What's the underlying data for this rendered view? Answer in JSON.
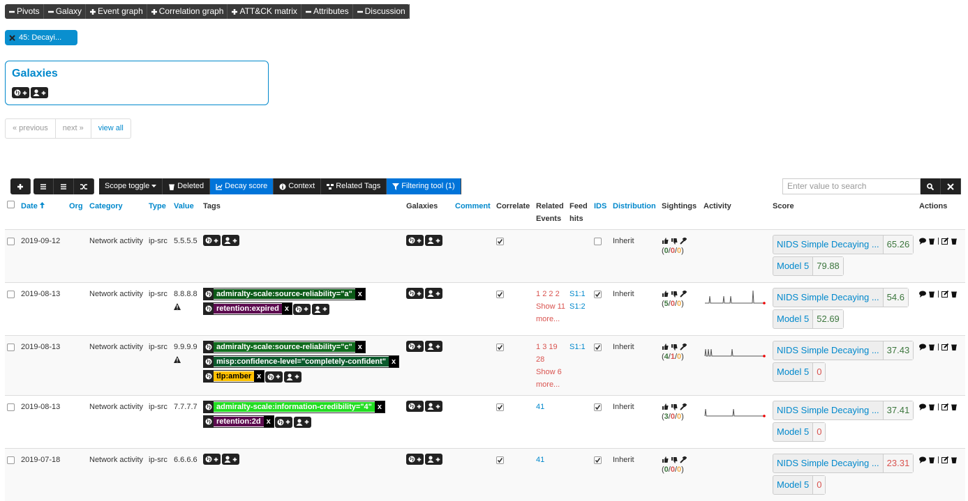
{
  "tabs": [
    {
      "text": "Pivots",
      "open": true
    },
    {
      "text": "Galaxy",
      "open": true
    },
    {
      "text": "Event graph",
      "open": false
    },
    {
      "text": "Correlation graph",
      "open": false
    },
    {
      "text": "ATT&CK matrix",
      "open": false
    },
    {
      "text": "Attributes",
      "open": true
    },
    {
      "text": "Discussion",
      "open": true
    }
  ],
  "pivot": "45: Decayi...",
  "galaxies": {
    "title": "Galaxies"
  },
  "pagination": [
    "« previous",
    "next »",
    "view all"
  ],
  "toolbar": [
    {
      "text": "Scope toggle",
      "active": false
    },
    {
      "text": "Deleted",
      "active": false
    },
    {
      "text": "Decay score",
      "active": true
    },
    {
      "text": "Context",
      "active": false
    },
    {
      "text": "Related Tags",
      "active": false
    },
    {
      "text": "Filtering tool (1)",
      "active": true
    }
  ],
  "search_placeholder": "Enter value to search",
  "tag_remove": "x",
  "table": {
    "headers": [
      {
        "text": "Date",
        "link": true
      },
      {
        "text": "Org",
        "link": true
      },
      {
        "text": "Category",
        "link": true
      },
      {
        "text": "Type",
        "link": true
      },
      {
        "text": "Value",
        "link": true
      },
      {
        "text": "Tags",
        "link": false
      },
      {
        "text": "Galaxies",
        "link": false
      },
      {
        "text": "Comment",
        "link": true
      },
      {
        "text": "Correlate",
        "link": false
      },
      {
        "text": "Related Events",
        "link": false
      },
      {
        "text": "Feed hits",
        "link": false
      },
      {
        "text": "IDS",
        "link": true
      },
      {
        "text": "Distribution",
        "link": true
      },
      {
        "text": "Sightings",
        "link": false
      },
      {
        "text": "Activity",
        "link": false
      },
      {
        "text": "Score",
        "link": false
      },
      {
        "text": "Actions",
        "link": false
      }
    ],
    "rows": [
      {
        "date": "2019-09-12",
        "category": "Network activity",
        "type": "ip-src",
        "value": "5.5.5.5",
        "warning": false,
        "tags": [],
        "correlate": true,
        "related": [],
        "related_more": null,
        "feed_hits": [],
        "ids": false,
        "distribution": "Inherit",
        "sightings": [
          0,
          0,
          0
        ],
        "activity": false,
        "scores": [
          {
            "model": "NIDS Simple Decaying ...",
            "score": 65.26,
            "color": "#3c763d"
          },
          {
            "model": "Model 5",
            "score": 79.88,
            "color": "#3c763d"
          }
        ]
      },
      {
        "date": "2019-08-13",
        "category": "Network activity",
        "type": "ip-src",
        "value": "8.8.8.8",
        "warning": true,
        "tags": [
          {
            "label": "admiralty-scale:source-reliability=\"a\"",
            "color": "#0b5a17",
            "text": "#ffffff"
          },
          {
            "label": "retention:expired",
            "color": "#5c0b4f",
            "text": "#ffffff"
          }
        ],
        "correlate": true,
        "related": [
          "1",
          "2",
          "2",
          "2"
        ],
        "related_more": "Show 11 more...",
        "feed_hits": [
          "S1:1",
          "S1:2"
        ],
        "ids": true,
        "distribution": "Inherit",
        "sightings": [
          5,
          0,
          0
        ],
        "activity": true,
        "scores": [
          {
            "model": "NIDS Simple Decaying ...",
            "score": 54.6,
            "color": "#3c763d"
          },
          {
            "model": "Model 5",
            "score": 52.69,
            "color": "#3c763d"
          }
        ]
      },
      {
        "date": "2019-08-13",
        "category": "Network activity",
        "type": "ip-src",
        "value": "9.9.9.9",
        "warning": true,
        "tags": [
          {
            "label": "admiralty-scale:source-reliability=\"c\"",
            "color": "#0f6b1d",
            "text": "#ffffff"
          },
          {
            "label": "misp:confidence-level=\"completely-confident\"",
            "color": "#0b5a2c",
            "text": "#ffffff"
          },
          {
            "label": "tlp:amber",
            "color": "#ffc000",
            "text": "#000000"
          }
        ],
        "correlate": true,
        "related": [
          "1",
          "3",
          "19",
          "28"
        ],
        "related_more": "Show 6 more...",
        "feed_hits": [
          "S1:1"
        ],
        "ids": true,
        "distribution": "Inherit",
        "sightings": [
          4,
          1,
          0
        ],
        "activity": true,
        "scores": [
          {
            "model": "NIDS Simple Decaying ...",
            "score": 37.43,
            "color": "#3c763d"
          },
          {
            "model": "Model 5",
            "score": 0,
            "color": "#d9534f"
          }
        ]
      },
      {
        "date": "2019-08-13",
        "category": "Network activity",
        "type": "ip-src",
        "value": "7.7.7.7",
        "warning": false,
        "tags": [
          {
            "label": "admiralty-scale:information-credibility=\"4\"",
            "color": "#22dd22",
            "text": "#ffffff"
          },
          {
            "label": "retention:2d",
            "color": "#5c0b4f",
            "text": "#ffffff"
          }
        ],
        "correlate": true,
        "related": [
          "41"
        ],
        "related_more": null,
        "feed_hits": [],
        "ids": true,
        "distribution": "Inherit",
        "sightings": [
          3,
          0,
          0
        ],
        "activity": true,
        "scores": [
          {
            "model": "NIDS Simple Decaying ...",
            "score": 37.41,
            "color": "#3c763d"
          },
          {
            "model": "Model 5",
            "score": 0,
            "color": "#d9534f"
          }
        ]
      },
      {
        "date": "2019-07-18",
        "category": "Network activity",
        "type": "ip-src",
        "value": "6.6.6.6",
        "warning": false,
        "tags": [],
        "correlate": true,
        "related": [
          "41"
        ],
        "related_more": null,
        "feed_hits": [],
        "ids": true,
        "distribution": "Inherit",
        "sightings": [
          0,
          0,
          0
        ],
        "activity": false,
        "scores": [
          {
            "model": "NIDS Simple Decaying ...",
            "score": 23.31,
            "color": "#d9534f"
          },
          {
            "model": "Model 5",
            "score": 0,
            "color": "#d9534f"
          }
        ]
      }
    ]
  }
}
